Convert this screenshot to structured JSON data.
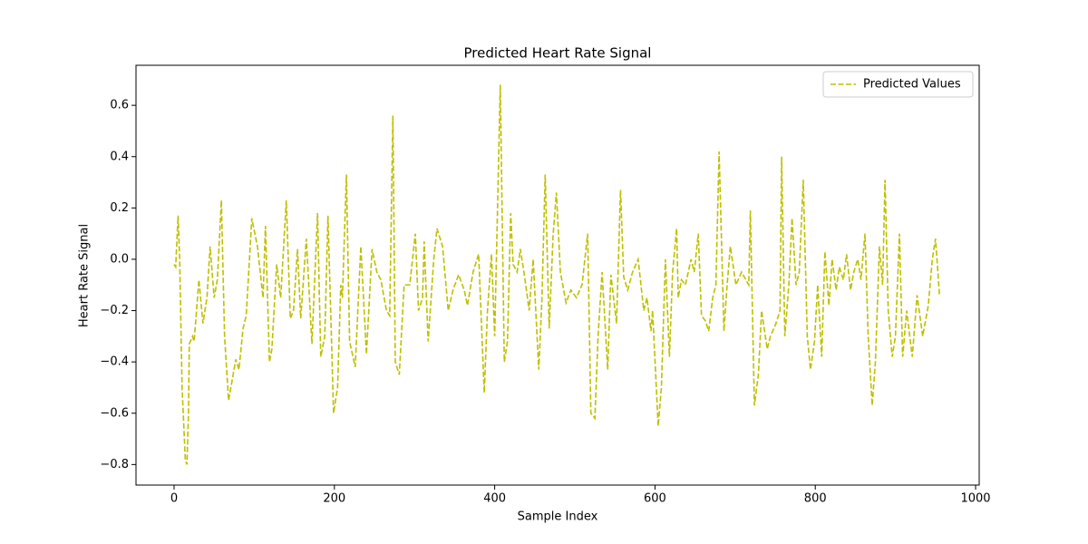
{
  "chart_data": {
    "type": "line",
    "title": "Predicted Heart Rate Signal",
    "x_label": "Sample Index",
    "y_label": "Heart Rate Signal",
    "x": [
      0,
      2,
      5,
      7,
      10,
      14,
      16,
      18,
      19,
      23,
      25,
      31,
      36,
      41,
      45,
      50,
      54,
      59,
      63,
      68,
      72,
      77,
      81,
      86,
      90,
      97,
      104,
      111,
      114,
      119,
      122,
      128,
      133,
      140,
      145,
      149,
      154,
      158,
      165,
      172,
      179,
      183,
      188,
      192,
      199,
      204,
      208,
      210,
      215,
      219,
      226,
      233,
      240,
      247,
      253,
      258,
      265,
      269,
      273,
      276,
      281,
      287,
      294,
      301,
      305,
      310,
      312,
      317,
      324,
      328,
      335,
      342,
      348,
      355,
      362,
      366,
      373,
      380,
      387,
      391,
      396,
      400,
      407,
      412,
      416,
      420,
      423,
      428,
      432,
      437,
      443,
      448,
      455,
      459,
      463,
      468,
      473,
      477,
      482,
      489,
      495,
      502,
      509,
      516,
      520,
      525,
      529,
      534,
      541,
      545,
      552,
      557,
      561,
      566,
      572,
      579,
      586,
      590,
      595,
      597,
      604,
      608,
      613,
      618,
      622,
      627,
      629,
      633,
      638,
      645,
      649,
      654,
      658,
      663,
      667,
      672,
      676,
      680,
      686,
      690,
      694,
      701,
      708,
      717,
      719,
      724,
      729,
      733,
      740,
      744,
      751,
      756,
      758,
      762,
      767,
      771,
      776,
      780,
      785,
      790,
      794,
      799,
      803,
      808,
      812,
      817,
      821,
      826,
      830,
      835,
      839,
      844,
      848,
      853,
      857,
      862,
      866,
      871,
      875,
      880,
      884,
      887,
      891,
      896,
      900,
      905,
      909,
      914,
      921,
      927,
      934,
      941,
      946,
      950,
      955
    ],
    "series": [
      {
        "name": "Predicted Values",
        "color": "#bfbf00",
        "dash": true,
        "values": [
          -0.02,
          -0.03,
          0.17,
          0.0,
          -0.5,
          -0.78,
          -0.8,
          -0.6,
          -0.33,
          -0.3,
          -0.32,
          -0.08,
          -0.25,
          -0.15,
          0.05,
          -0.15,
          -0.08,
          0.23,
          -0.3,
          -0.55,
          -0.48,
          -0.39,
          -0.43,
          -0.27,
          -0.22,
          0.16,
          0.05,
          -0.15,
          0.13,
          -0.4,
          -0.35,
          -0.02,
          -0.15,
          0.23,
          -0.23,
          -0.2,
          0.04,
          -0.23,
          0.08,
          -0.33,
          0.18,
          -0.38,
          -0.3,
          0.17,
          -0.6,
          -0.5,
          -0.1,
          -0.15,
          0.33,
          -0.32,
          -0.42,
          0.05,
          -0.37,
          0.04,
          -0.05,
          -0.08,
          -0.2,
          -0.22,
          0.56,
          -0.4,
          -0.45,
          -0.1,
          -0.1,
          0.1,
          -0.2,
          -0.15,
          0.07,
          -0.32,
          0.0,
          0.12,
          0.05,
          -0.2,
          -0.12,
          -0.06,
          -0.12,
          -0.18,
          -0.05,
          0.02,
          -0.52,
          -0.2,
          0.02,
          -0.3,
          0.68,
          -0.4,
          -0.32,
          0.18,
          -0.02,
          -0.05,
          0.04,
          -0.06,
          -0.2,
          0.0,
          -0.43,
          -0.15,
          0.33,
          -0.27,
          0.1,
          0.26,
          -0.05,
          -0.17,
          -0.12,
          -0.15,
          -0.1,
          0.1,
          -0.6,
          -0.62,
          -0.3,
          -0.05,
          -0.43,
          -0.06,
          -0.25,
          0.27,
          -0.07,
          -0.12,
          -0.05,
          0.0,
          -0.2,
          -0.15,
          -0.28,
          -0.2,
          -0.65,
          -0.5,
          0.0,
          -0.38,
          -0.05,
          0.12,
          -0.15,
          -0.08,
          -0.1,
          0.0,
          -0.05,
          0.1,
          -0.22,
          -0.24,
          -0.28,
          -0.15,
          -0.1,
          0.42,
          -0.28,
          -0.1,
          0.05,
          -0.1,
          -0.05,
          -0.1,
          0.19,
          -0.57,
          -0.45,
          -0.2,
          -0.35,
          -0.3,
          -0.25,
          -0.2,
          0.4,
          -0.3,
          -0.1,
          0.16,
          -0.1,
          -0.05,
          0.31,
          -0.3,
          -0.43,
          -0.32,
          -0.1,
          -0.38,
          0.03,
          -0.18,
          0.0,
          -0.12,
          -0.03,
          -0.08,
          0.02,
          -0.12,
          -0.05,
          0.0,
          -0.08,
          0.1,
          -0.3,
          -0.57,
          -0.4,
          0.05,
          -0.1,
          0.31,
          -0.2,
          -0.38,
          -0.3,
          0.1,
          -0.38,
          -0.2,
          -0.38,
          -0.14,
          -0.3,
          -0.18,
          0.0,
          0.08,
          -0.14
        ]
      }
    ],
    "xlim": [
      -47.5,
      1004.5
    ],
    "ylim": [
      -0.88,
      0.756
    ],
    "xticks": [
      0,
      200,
      400,
      600,
      800,
      1000
    ],
    "yticks": [
      {
        "value": -0.8,
        "label": "−0.8"
      },
      {
        "value": -0.6,
        "label": "−0.6"
      },
      {
        "value": -0.4,
        "label": "−0.4"
      },
      {
        "value": -0.2,
        "label": "−0.2"
      },
      {
        "value": 0,
        "label": "0.0"
      },
      0.2,
      0.4,
      0.6
    ],
    "legend": "upper right"
  }
}
